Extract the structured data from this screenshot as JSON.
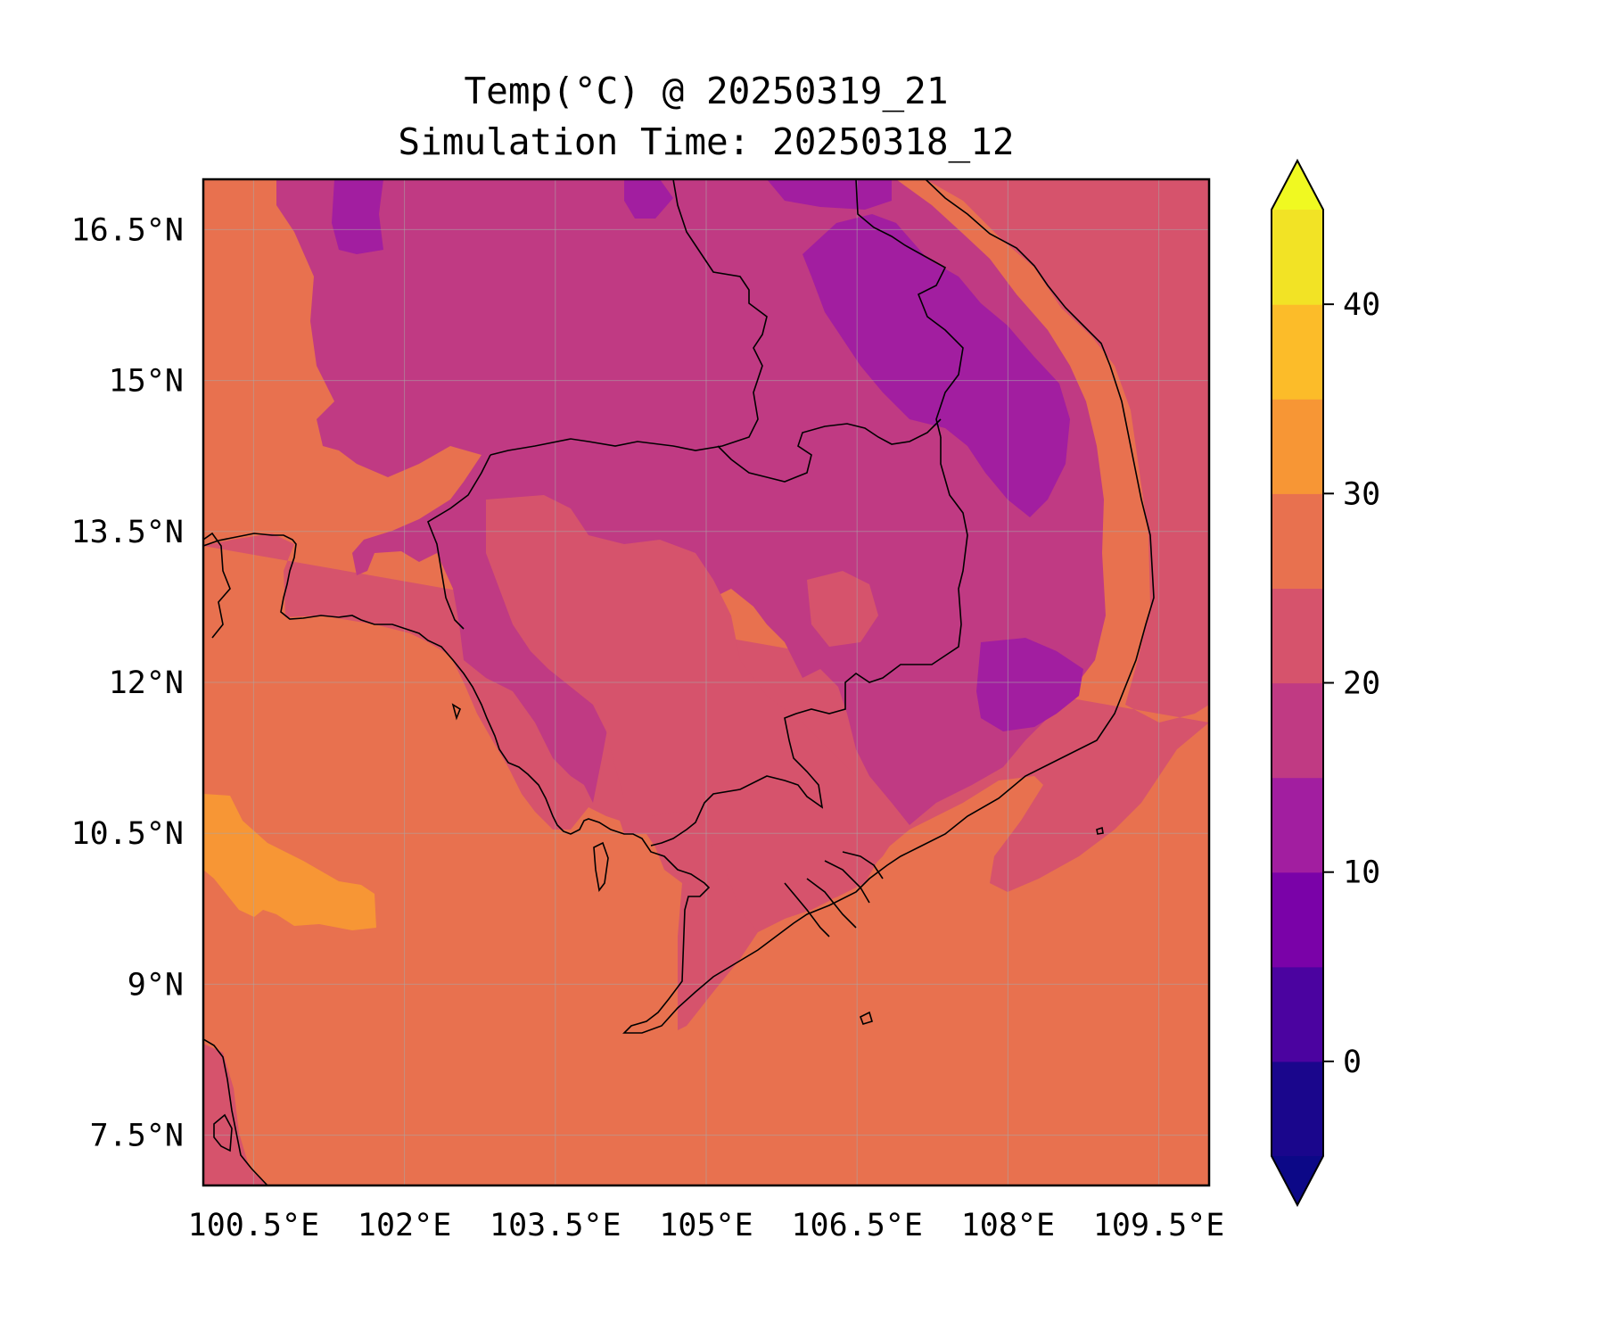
{
  "title": {
    "line1": "Temp(°C) @ 20250319_21",
    "line2": "Simulation Time: 20250318_12"
  },
  "map": {
    "lon_range": [
      100.0,
      110.0
    ],
    "lat_range": [
      7.0,
      17.0
    ],
    "gridlines": true,
    "lon_ticks": [
      {
        "value": 100.5,
        "label": "100.5°E"
      },
      {
        "value": 102.0,
        "label": "102°E"
      },
      {
        "value": 103.5,
        "label": "103.5°E"
      },
      {
        "value": 105.0,
        "label": "105°E"
      },
      {
        "value": 106.5,
        "label": "106.5°E"
      },
      {
        "value": 108.0,
        "label": "108°E"
      },
      {
        "value": 109.5,
        "label": "109.5°E"
      }
    ],
    "lat_ticks": [
      {
        "value": 16.5,
        "label": "16.5°N"
      },
      {
        "value": 15.0,
        "label": "15°N"
      },
      {
        "value": 13.5,
        "label": "13.5°N"
      },
      {
        "value": 12.0,
        "label": "12°N"
      },
      {
        "value": 10.5,
        "label": "10.5°N"
      },
      {
        "value": 9.0,
        "label": "9°N"
      },
      {
        "value": 7.5,
        "label": "7.5°N"
      }
    ],
    "dominant_levels": {
      "sea": "25-30",
      "gulf_warm_patch": "30-35",
      "lowland": "20-25",
      "plateau": "15-20",
      "highland": "10-15"
    }
  },
  "colorbar": {
    "levels": [
      -5,
      0,
      5,
      10,
      15,
      20,
      25,
      30,
      35,
      40,
      45
    ],
    "colors": [
      "#1a068c",
      "#4b03a0",
      "#7a02a8",
      "#a21ea0",
      "#c03a83",
      "#d6536c",
      "#e8714f",
      "#f79635",
      "#fcbc29",
      "#f2e325"
    ],
    "under_color": "#0c0887",
    "over_color": "#f0f921",
    "extend": "both",
    "tick_values": [
      0,
      10,
      20,
      30,
      40
    ],
    "tick_labels": [
      "0",
      "10",
      "20",
      "30",
      "40"
    ]
  }
}
